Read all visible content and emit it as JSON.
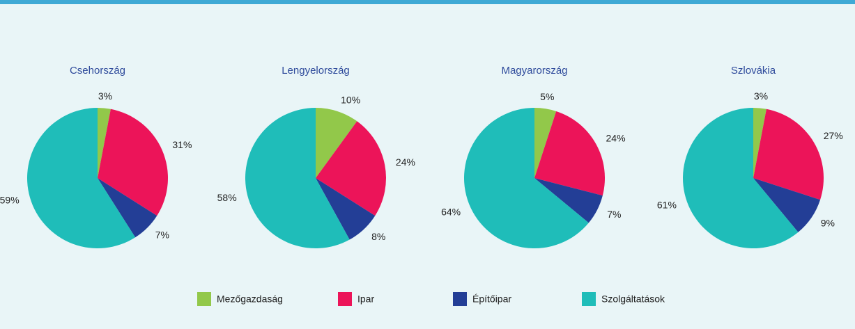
{
  "chart_data": [
    {
      "type": "pie",
      "title": "Csehország",
      "categories": [
        "Mezőgazdaság",
        "Ipar",
        "Építőipar",
        "Szolgáltatások"
      ],
      "values": [
        3,
        31,
        7,
        59
      ],
      "value_labels": [
        "3%",
        "31%",
        "7%",
        "59%"
      ],
      "colors": [
        "#92c84a",
        "#ec1459",
        "#233e96",
        "#1fbdb9"
      ],
      "legend": "bottom"
    },
    {
      "type": "pie",
      "title": "Lengyelország",
      "categories": [
        "Mezőgazdaság",
        "Ipar",
        "Építőipar",
        "Szolgáltatások"
      ],
      "values": [
        10,
        24,
        8,
        58
      ],
      "value_labels": [
        "10%",
        "24%",
        "8%",
        "58%"
      ],
      "colors": [
        "#92c84a",
        "#ec1459",
        "#233e96",
        "#1fbdb9"
      ]
    },
    {
      "type": "pie",
      "title": "Magyarország",
      "categories": [
        "Mezőgazdaság",
        "Ipar",
        "Építőipar",
        "Szolgáltatások"
      ],
      "values": [
        5,
        24,
        7,
        64
      ],
      "value_labels": [
        "5%",
        "24%",
        "7%",
        "64%"
      ],
      "colors": [
        "#92c84a",
        "#ec1459",
        "#233e96",
        "#1fbdb9"
      ]
    },
    {
      "type": "pie",
      "title": "Szlovákia",
      "categories": [
        "Mezőgazdaság",
        "Ipar",
        "Építőipar",
        "Szolgáltatások"
      ],
      "values": [
        3,
        27,
        9,
        61
      ],
      "value_labels": [
        "3%",
        "27%",
        "9%",
        "61%"
      ],
      "colors": [
        "#92c84a",
        "#ec1459",
        "#233e96",
        "#1fbdb9"
      ]
    }
  ]
}
